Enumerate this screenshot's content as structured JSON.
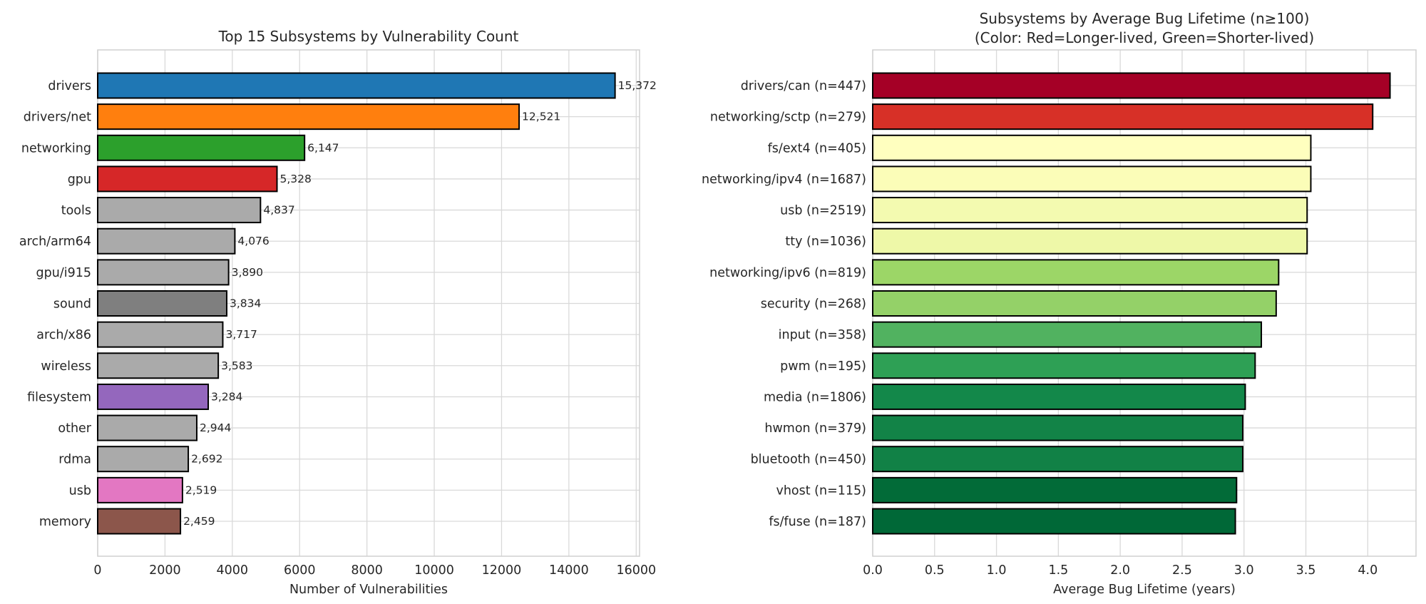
{
  "chart_data": [
    {
      "type": "bar",
      "orientation": "horizontal",
      "title": "Top 15 Subsystems by Vulnerability Count",
      "xlabel": "Number of Vulnerabilities",
      "ylabel": "",
      "xlim": [
        0,
        16100
      ],
      "xticks": [
        0,
        2000,
        4000,
        6000,
        8000,
        10000,
        12000,
        14000,
        16000
      ],
      "grid": true,
      "categories": [
        "drivers",
        "drivers/net",
        "networking",
        "gpu",
        "tools",
        "arch/arm64",
        "gpu/i915",
        "sound",
        "arch/x86",
        "wireless",
        "filesystem",
        "other",
        "rdma",
        "usb",
        "memory"
      ],
      "values": [
        15372,
        12521,
        6147,
        5328,
        4837,
        4076,
        3890,
        3834,
        3717,
        3583,
        3284,
        2944,
        2692,
        2519,
        2459
      ],
      "value_labels": [
        "15,372",
        "12,521",
        "6,147",
        "5,328",
        "4,837",
        "4,076",
        "3,890",
        "3,834",
        "3,717",
        "3,583",
        "3,284",
        "2,944",
        "2,692",
        "2,519",
        "2,459"
      ],
      "colors": [
        "#1f77b4",
        "#ff7f0e",
        "#2ca02c",
        "#d62728",
        "#aaaaaa",
        "#aaaaaa",
        "#aaaaaa",
        "#7f7f7f",
        "#aaaaaa",
        "#aaaaaa",
        "#9467bd",
        "#aaaaaa",
        "#aaaaaa",
        "#e377c2",
        "#8c564b"
      ]
    },
    {
      "type": "bar",
      "orientation": "horizontal",
      "title": "Subsystems by Average Bug Lifetime (n≥100)",
      "subtitle": "(Color: Red=Longer-lived, Green=Shorter-lived)",
      "xlabel": "Average Bug Lifetime (years)",
      "ylabel": "",
      "xlim": [
        0,
        4.39
      ],
      "xticks": [
        "0.0",
        "0.5",
        "1.0",
        "1.5",
        "2.0",
        "2.5",
        "3.0",
        "3.5",
        "4.0"
      ],
      "grid": true,
      "categories": [
        "drivers/can (n=447)",
        "networking/sctp (n=279)",
        "fs/ext4 (n=405)",
        "networking/ipv4 (n=1687)",
        "usb (n=2519)",
        "tty (n=1036)",
        "networking/ipv6 (n=819)",
        "security (n=268)",
        "input (n=358)",
        "pwm (n=195)",
        "media (n=1806)",
        "hwmon (n=379)",
        "bluetooth (n=450)",
        "vhost (n=115)",
        "fs/fuse (n=187)"
      ],
      "values": [
        4.18,
        4.04,
        3.54,
        3.54,
        3.51,
        3.51,
        3.28,
        3.26,
        3.14,
        3.09,
        3.01,
        2.99,
        2.99,
        2.94,
        2.93
      ],
      "colors": [
        "#a50026",
        "#d73027",
        "#ffffbf",
        "#fbfdb8",
        "#f3fab0",
        "#eef8a8",
        "#9cd667",
        "#94d168",
        "#51b260",
        "#2ea055",
        "#13884a",
        "#128347",
        "#118146",
        "#026b38",
        "#006837"
      ]
    }
  ]
}
